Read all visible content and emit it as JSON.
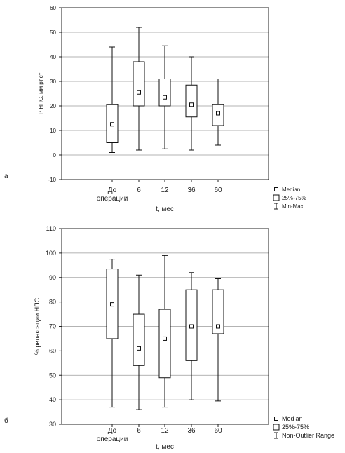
{
  "chart_data": [
    {
      "type": "boxplot",
      "panel_label": "а",
      "categories": [
        "До\nоперации",
        "6",
        "12",
        "36",
        "60"
      ],
      "xlabel": "t, мес",
      "ylabel": "Р НПС, мм рт.ст",
      "ylim": [
        -10,
        60
      ],
      "yticks": [
        -10,
        0,
        10,
        20,
        30,
        40,
        50,
        60
      ],
      "grid": true,
      "legend_position": "bottom-right",
      "legend": {
        "median": "Median",
        "box": "25%-75%",
        "whisker": "Min-Max"
      },
      "boxes": [
        {
          "median": 12.5,
          "q1": 5,
          "q3": 20.5,
          "min": 1,
          "max": 44
        },
        {
          "median": 25.5,
          "q1": 20,
          "q3": 38,
          "min": 2,
          "max": 52
        },
        {
          "median": 23.5,
          "q1": 20,
          "q3": 31,
          "min": 2.5,
          "max": 44.5
        },
        {
          "median": 20.5,
          "q1": 15.5,
          "q3": 28.5,
          "min": 2,
          "max": 40
        },
        {
          "median": 17,
          "q1": 12,
          "q3": 20.5,
          "min": 4,
          "max": 31
        }
      ]
    },
    {
      "type": "boxplot",
      "panel_label": "б",
      "categories": [
        "До\nоперации",
        "6",
        "12",
        "36",
        "60"
      ],
      "xlabel": "t, мес",
      "ylabel": "% релаксации НПС",
      "ylim": [
        30,
        110
      ],
      "yticks": [
        30,
        40,
        50,
        60,
        70,
        80,
        90,
        100,
        110
      ],
      "grid": true,
      "legend_position": "bottom-right",
      "legend": {
        "median": "Median",
        "box": "25%-75%",
        "whisker": "Non-Outlier Range"
      },
      "boxes": [
        {
          "median": 79,
          "q1": 65,
          "q3": 93.5,
          "min": 37,
          "max": 97.5
        },
        {
          "median": 61,
          "q1": 54,
          "q3": 75,
          "min": 36,
          "max": 91
        },
        {
          "median": 65,
          "q1": 49,
          "q3": 77,
          "min": 37,
          "max": 99
        },
        {
          "median": 70,
          "q1": 56,
          "q3": 85,
          "min": 40,
          "max": 92
        },
        {
          "median": 70,
          "q1": 67,
          "q3": 85,
          "min": 39.5,
          "max": 89.5
        }
      ]
    }
  ]
}
